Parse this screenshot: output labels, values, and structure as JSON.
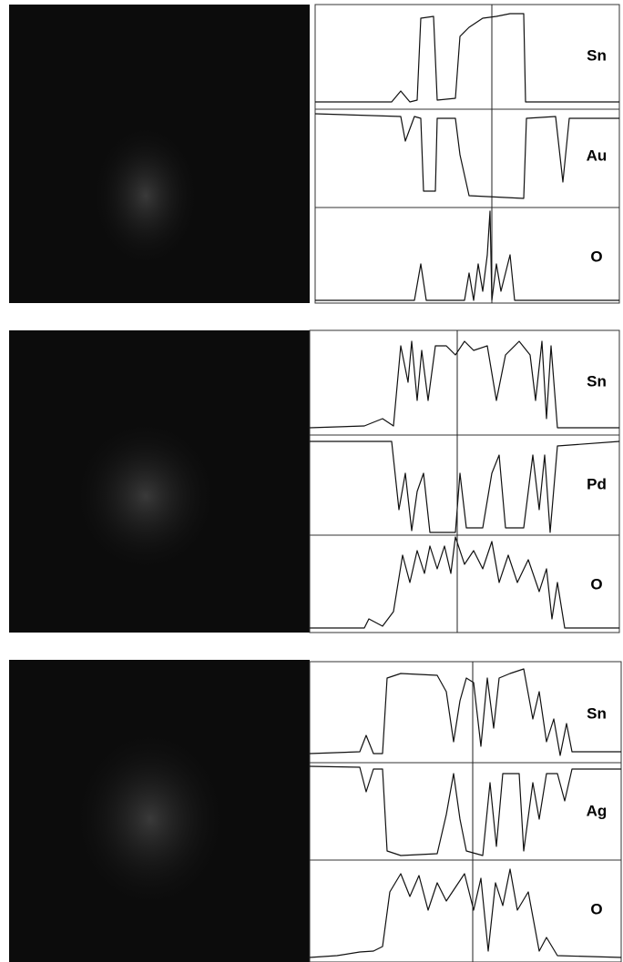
{
  "figure": {
    "panels": [
      {
        "labels": [
          "Sn",
          "Au",
          "O"
        ]
      },
      {
        "labels": [
          "Sn",
          "Pd",
          "O"
        ]
      },
      {
        "labels": [
          "Sn",
          "Ag",
          "O"
        ]
      }
    ]
  }
}
